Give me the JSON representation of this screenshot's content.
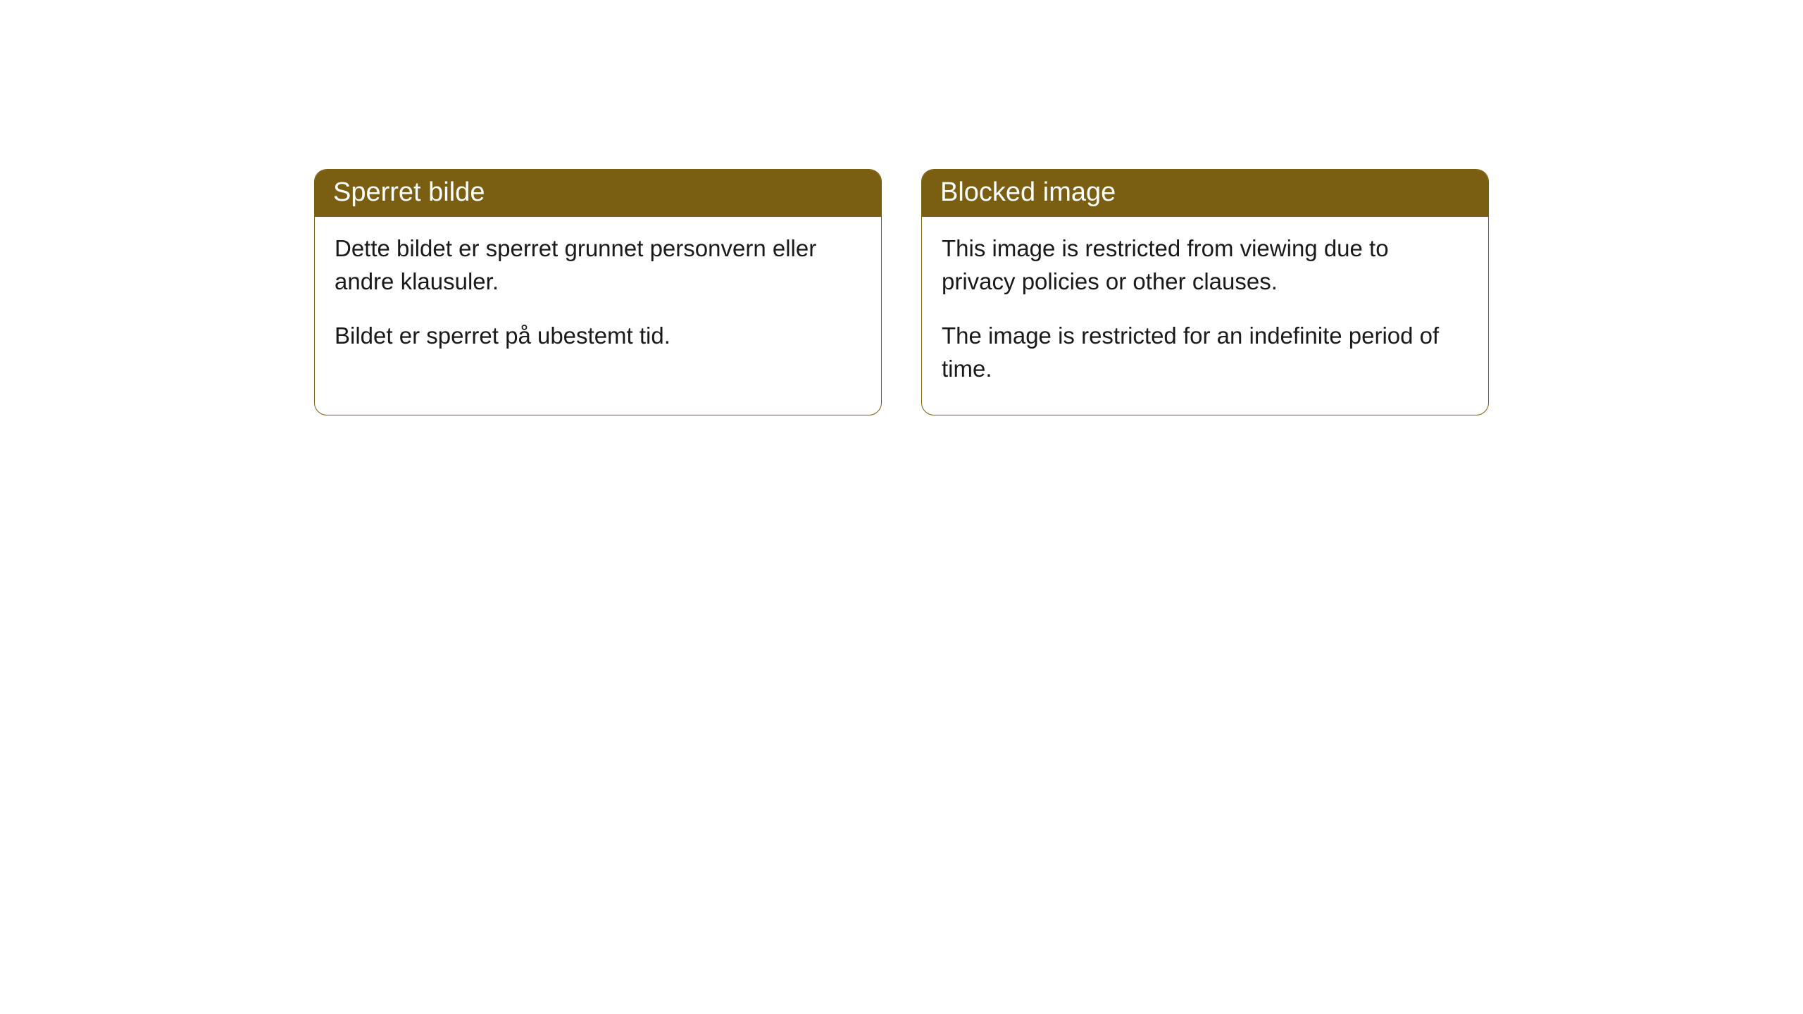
{
  "cards": [
    {
      "title": "Sperret bilde",
      "paragraph1": "Dette bildet er sperret grunnet personvern eller andre klausuler.",
      "paragraph2": "Bildet er sperret på ubestemt tid."
    },
    {
      "title": "Blocked image",
      "paragraph1": "This image is restricted from viewing due to privacy policies or other clauses.",
      "paragraph2": "The image is restricted for an indefinite period of time."
    }
  ],
  "styling": {
    "header_background": "#7a5e12",
    "header_text_color": "#ffffff",
    "body_text_color": "#1a1a1a",
    "card_border_color": "#7a5e12",
    "card_background": "#ffffff",
    "page_background": "#ffffff",
    "border_radius": 18,
    "header_font_size": 38,
    "body_font_size": 33
  }
}
